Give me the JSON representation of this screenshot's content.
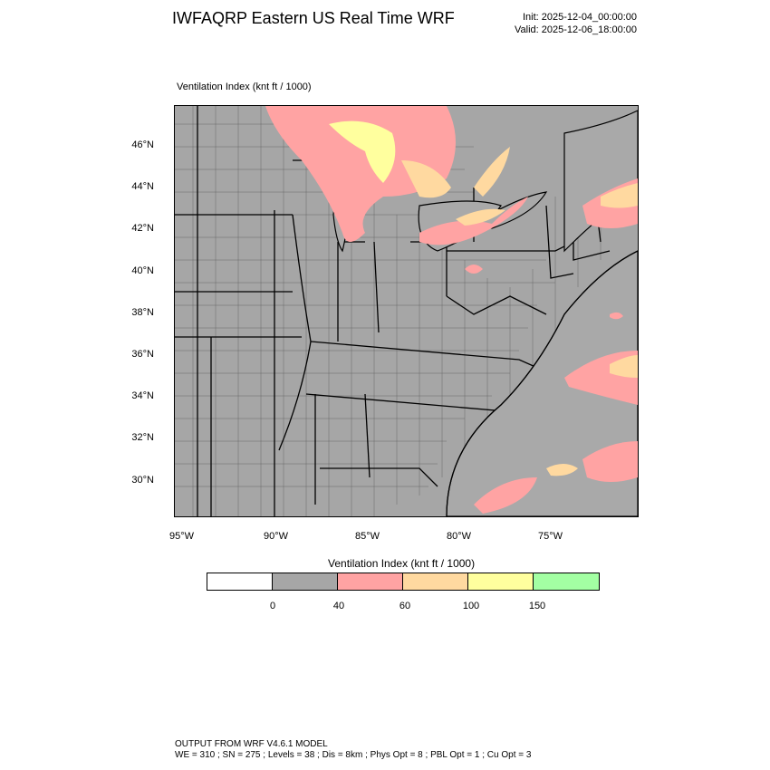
{
  "header": {
    "title": "IWFAQRP Eastern US Real Time WRF",
    "init": "Init: 2025-12-04_00:00:00",
    "valid": "Valid: 2025-12-06_18:00:00"
  },
  "plot": {
    "label": "Ventilation Index   (knt ft / 1000)",
    "lat_labels": [
      "46°N",
      "44°N",
      "42°N",
      "40°N",
      "38°N",
      "36°N",
      "34°N",
      "32°N",
      "30°N"
    ],
    "lon_labels": [
      "95°W",
      "90°W",
      "85°W",
      "80°W",
      "75°W"
    ]
  },
  "legend": {
    "title": "Ventilation Index  (knt ft / 1000)",
    "colors": [
      "#ffffff",
      "#a6a6a6",
      "#ffa3a3",
      "#ffd9a0",
      "#ffff9e",
      "#a3ffa3"
    ],
    "ticks": [
      "0",
      "40",
      "60",
      "100",
      "150"
    ]
  },
  "footer": {
    "line1": "OUTPUT FROM WRF V4.6.1 MODEL",
    "line2": "WE = 310 ; SN = 275 ; Levels = 38 ; Dis = 8km ; Phys Opt = 8 ; PBL Opt = 1 ; Cu Opt = 3"
  },
  "map": {
    "background_color": "#a6a6a6",
    "water_color": "#a9a9a9"
  }
}
